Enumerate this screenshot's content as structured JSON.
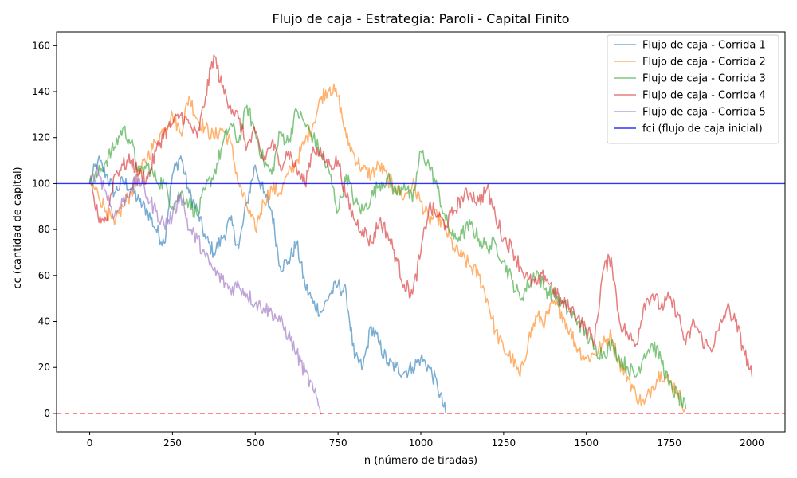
{
  "chart_data": {
    "type": "line",
    "title": "Flujo de caja - Estrategia: Paroli - Capital Finito",
    "xlabel": "n (número de tiradas)",
    "ylabel": "cc (cantidad de capital)",
    "xlim": [
      -100,
      2100
    ],
    "ylim": [
      -8,
      166
    ],
    "x_ticks": [
      0,
      250,
      500,
      750,
      1000,
      1250,
      1500,
      1750,
      2000
    ],
    "y_ticks": [
      0,
      20,
      40,
      60,
      80,
      100,
      120,
      140,
      160
    ],
    "grid": false,
    "legend_position": "top-right",
    "series": [
      {
        "name": "Flujo de caja - Corrida 1",
        "color": "#1f77b4",
        "x": [
          0,
          25,
          50,
          75,
          100,
          125,
          150,
          175,
          200,
          225,
          250,
          275,
          300,
          325,
          350,
          375,
          400,
          425,
          450,
          475,
          500,
          525,
          550,
          575,
          600,
          625,
          650,
          675,
          700,
          725,
          750,
          775,
          800,
          825,
          850,
          875,
          900,
          925,
          950,
          975,
          1000,
          1025,
          1050,
          1075
        ],
        "y": [
          100,
          110,
          104,
          96,
          101,
          98,
          92,
          88,
          80,
          74,
          104,
          112,
          96,
          88,
          76,
          70,
          76,
          84,
          72,
          92,
          108,
          96,
          88,
          64,
          66,
          74,
          56,
          48,
          44,
          52,
          56,
          52,
          24,
          20,
          38,
          30,
          22,
          20,
          18,
          20,
          24,
          20,
          12,
          0
        ]
      },
      {
        "name": "Flujo de caja - Corrida 2",
        "color": "#ff7f0e",
        "x": [
          0,
          25,
          50,
          75,
          100,
          125,
          150,
          175,
          200,
          225,
          250,
          275,
          300,
          325,
          350,
          375,
          400,
          425,
          450,
          475,
          500,
          525,
          550,
          575,
          600,
          625,
          650,
          675,
          700,
          725,
          750,
          775,
          800,
          825,
          850,
          875,
          900,
          925,
          950,
          975,
          1000,
          1025,
          1050,
          1075,
          1100,
          1125,
          1150,
          1175,
          1200,
          1225,
          1250,
          1275,
          1300,
          1325,
          1350,
          1375,
          1400,
          1425,
          1450,
          1475,
          1500,
          1525,
          1550,
          1575,
          1600,
          1625,
          1650,
          1675,
          1700,
          1725,
          1750,
          1775,
          1800
        ],
        "y": [
          100,
          96,
          88,
          82,
          90,
          96,
          104,
          112,
          118,
          124,
          130,
          122,
          138,
          128,
          124,
          120,
          124,
          118,
          100,
          90,
          80,
          92,
          98,
          96,
          104,
          110,
          118,
          126,
          138,
          142,
          138,
          120,
          112,
          106,
          104,
          108,
          102,
          98,
          94,
          100,
          92,
          84,
          86,
          80,
          72,
          68,
          64,
          60,
          50,
          36,
          28,
          24,
          16,
          32,
          42,
          40,
          48,
          44,
          36,
          28,
          24,
          26,
          30,
          34,
          22,
          16,
          8,
          4,
          12,
          18,
          14,
          10,
          2
        ]
      },
      {
        "name": "Flujo de caja - Corrida 3",
        "color": "#2ca02c",
        "x": [
          0,
          25,
          50,
          75,
          100,
          125,
          150,
          175,
          200,
          225,
          250,
          275,
          300,
          325,
          350,
          375,
          400,
          425,
          450,
          475,
          500,
          525,
          550,
          575,
          600,
          625,
          650,
          675,
          700,
          725,
          750,
          775,
          800,
          825,
          850,
          875,
          900,
          925,
          950,
          975,
          1000,
          1025,
          1050,
          1075,
          1100,
          1125,
          1150,
          1175,
          1200,
          1225,
          1250,
          1275,
          1300,
          1325,
          1350,
          1375,
          1400,
          1425,
          1450,
          1475,
          1500,
          1525,
          1550,
          1575,
          1600,
          1625,
          1650,
          1675,
          1700,
          1725,
          1750,
          1775,
          1800
        ],
        "y": [
          100,
          104,
          110,
          116,
          124,
          118,
          104,
          108,
          102,
          100,
          90,
          96,
          92,
          86,
          98,
          104,
          116,
          126,
          118,
          134,
          122,
          110,
          104,
          122,
          118,
          132,
          126,
          120,
          112,
          104,
          88,
          104,
          92,
          88,
          94,
          100,
          102,
          96,
          100,
          92,
          114,
          108,
          98,
          84,
          76,
          78,
          82,
          76,
          72,
          74,
          66,
          58,
          50,
          56,
          62,
          54,
          52,
          48,
          44,
          40,
          34,
          28,
          26,
          30,
          24,
          20,
          16,
          26,
          30,
          24,
          12,
          8,
          2
        ]
      },
      {
        "name": "Flujo de caja - Corrida 4",
        "color": "#d62728",
        "x": [
          0,
          25,
          50,
          75,
          100,
          125,
          150,
          175,
          200,
          225,
          250,
          275,
          300,
          325,
          350,
          375,
          400,
          425,
          450,
          475,
          500,
          525,
          550,
          575,
          600,
          625,
          650,
          675,
          700,
          725,
          750,
          775,
          800,
          825,
          850,
          875,
          900,
          925,
          950,
          975,
          1000,
          1025,
          1050,
          1075,
          1100,
          1125,
          1150,
          1175,
          1200,
          1225,
          1250,
          1275,
          1300,
          1325,
          1350,
          1375,
          1400,
          1425,
          1450,
          1475,
          1500,
          1525,
          1550,
          1575,
          1600,
          1625,
          1650,
          1675,
          1700,
          1725,
          1750,
          1775,
          1800,
          1825,
          1850,
          1875,
          1900,
          1925,
          1950,
          1975,
          2000
        ],
        "y": [
          100,
          86,
          84,
          104,
          108,
          110,
          104,
          102,
          114,
          122,
          126,
          130,
          126,
          120,
          138,
          156,
          142,
          134,
          128,
          116,
          122,
          110,
          118,
          108,
          114,
          106,
          100,
          116,
          112,
          108,
          110,
          94,
          84,
          80,
          74,
          84,
          78,
          68,
          56,
          52,
          70,
          90,
          86,
          82,
          88,
          94,
          96,
          92,
          98,
          86,
          76,
          72,
          64,
          58,
          56,
          60,
          54,
          48,
          46,
          42,
          36,
          32,
          62,
          68,
          40,
          34,
          30,
          48,
          52,
          46,
          50,
          44,
          30,
          40,
          32,
          28,
          36,
          46,
          40,
          28,
          16
        ]
      },
      {
        "name": "Flujo de caja - Corrida 5",
        "color": "#9467bd",
        "x": [
          0,
          25,
          50,
          75,
          100,
          125,
          150,
          175,
          200,
          225,
          250,
          275,
          300,
          325,
          350,
          375,
          400,
          425,
          450,
          475,
          500,
          525,
          550,
          575,
          600,
          625,
          650,
          675,
          700
        ],
        "y": [
          100,
          106,
          96,
          86,
          92,
          98,
          102,
          94,
          88,
          82,
          86,
          96,
          80,
          76,
          68,
          62,
          58,
          54,
          56,
          52,
          48,
          46,
          44,
          40,
          34,
          26,
          18,
          10,
          0
        ]
      },
      {
        "name": "fci (flujo de caja inicial)",
        "color": "#0000ff",
        "style": "hline",
        "y_const": 100
      },
      {
        "name": "",
        "color": "#ff0000",
        "style": "hline-dashed",
        "y_const": 0
      }
    ]
  }
}
